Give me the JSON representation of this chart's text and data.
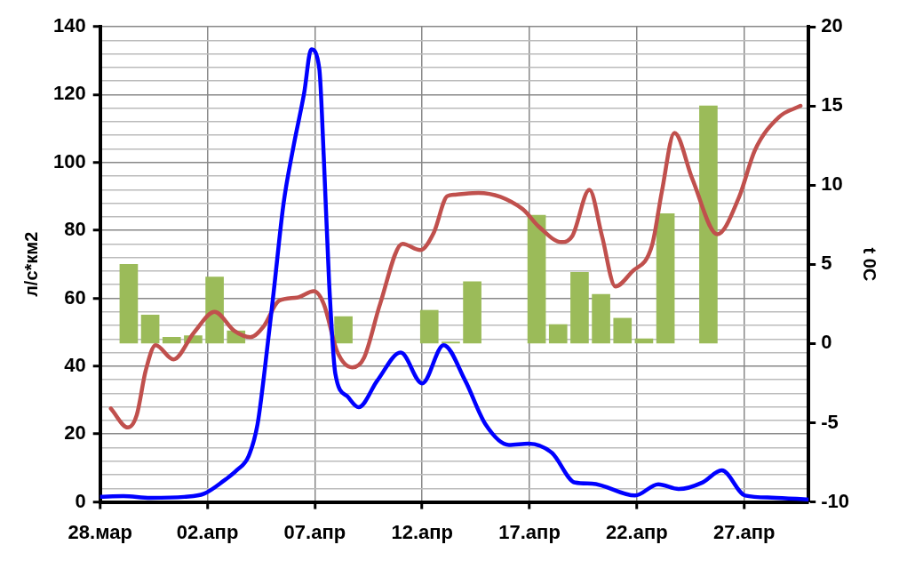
{
  "chart_data": {
    "type": "line",
    "ylabel": "л/с*км2",
    "y2label": "t 0C",
    "grid": true,
    "legend": false,
    "marker": "none",
    "line_style": "solid",
    "xlim": [
      "--03-28",
      "--04-30"
    ],
    "xticks": [
      {
        "value": "--03-28",
        "label": "28.мар"
      },
      {
        "value": "--04-02",
        "label": "02.апр"
      },
      {
        "value": "--04-07",
        "label": "07.апр"
      },
      {
        "value": "--04-12",
        "label": "12.апр"
      },
      {
        "value": "--04-17",
        "label": "17.апр"
      },
      {
        "value": "--04-22",
        "label": "22.апр"
      },
      {
        "value": "--04-27",
        "label": "27.апр"
      }
    ],
    "ylim": [
      0,
      140
    ],
    "yticks": [
      0,
      {
        "value": 4,
        "label": null
      },
      {
        "value": 8,
        "label": null
      },
      {
        "value": 12,
        "label": null
      },
      {
        "value": 16,
        "label": null
      },
      20,
      {
        "value": 24,
        "label": null
      },
      {
        "value": 28,
        "label": null
      },
      {
        "value": 32,
        "label": null
      },
      {
        "value": 36,
        "label": null
      },
      40,
      {
        "value": 44,
        "label": null
      },
      {
        "value": 48,
        "label": null
      },
      {
        "value": 52,
        "label": null
      },
      {
        "value": 56,
        "label": null
      },
      60,
      {
        "value": 64,
        "label": null
      },
      {
        "value": 68,
        "label": null
      },
      {
        "value": 72,
        "label": null
      },
      {
        "value": 76,
        "label": null
      },
      80,
      {
        "value": 84,
        "label": null
      },
      {
        "value": 88,
        "label": null
      },
      {
        "value": 92,
        "label": null
      },
      {
        "value": 96,
        "label": null
      },
      100,
      {
        "value": 104,
        "label": null
      },
      {
        "value": 108,
        "label": null
      },
      {
        "value": 112,
        "label": null
      },
      {
        "value": 116,
        "label": null
      },
      120,
      {
        "value": 124,
        "label": null
      },
      {
        "value": 128,
        "label": null
      },
      {
        "value": 132,
        "label": null
      },
      {
        "value": 136,
        "label": null
      },
      140
    ],
    "y2lim": [
      -10,
      20
    ],
    "y2ticks": [
      -10,
      -5,
      0,
      5,
      10,
      15,
      20
    ],
    "series": [
      {
        "type": "bar",
        "axis": "y2",
        "color": "#9bbb59",
        "x": [
          "--03-29T08:00",
          "--03-30T08:00",
          "--03-31T08:00",
          "--04-01T08:00",
          "--04-02T08:00",
          "--04-03T08:00",
          "--04-08T08:00",
          "--04-12T08:00",
          "--04-13T08:00",
          "--04-14T08:00",
          "--04-17T08:00",
          "--04-18T08:00",
          "--04-19T08:00",
          "--04-20T08:00",
          "--04-21T08:00",
          "--04-22T08:00",
          "--04-23T08:00",
          "--04-25T08:00"
        ],
        "values": [
          5.0,
          1.8,
          0.4,
          0.5,
          4.2,
          0.8,
          1.7,
          2.1,
          0.1,
          3.9,
          8.1,
          1.2,
          4.5,
          3.1,
          1.6,
          0.3,
          8.2,
          15.0
        ]
      },
      {
        "color": "#0000ff",
        "x": [
          "--03-28T00:00",
          "--03-29T02:00",
          "--03-30T08:00",
          "--03-31T22:00",
          "--04-01T20:00",
          "--04-02T18:00",
          "--04-03T09:00",
          "--04-03T22:00",
          "--04-04T08:00",
          "--04-04T15:00",
          "--04-05T02:00",
          "--04-05T13:00",
          "--04-06T00:00",
          "--04-06T12:00",
          "--04-06T20:00",
          "--04-07T05:00",
          "--04-07T10:00",
          "--04-07T16:00",
          "--04-07T23:00",
          "--04-08T12:00",
          "--04-09T01:00",
          "--04-09T22:00",
          "--04-11T00:00",
          "--04-12T00:00",
          "--04-13T00:00",
          "--04-14T00:00",
          "--04-14T23:00",
          "--04-16T01:00",
          "--04-16T23:00",
          "--04-18T01:00",
          "--04-19T03:00",
          "--04-19T22:00",
          "--04-21T22:00",
          "--04-23T00:00",
          "--04-23T23:00",
          "--04-25T01:00",
          "--04-25T23:00",
          "--04-27T01:00",
          "--04-28T07:00",
          "--04-30T00:00"
        ],
        "values": [
          1.5,
          1.7,
          1.2,
          1.5,
          2.4,
          6.2,
          9.4,
          13.5,
          22.9,
          36.7,
          61.8,
          87.8,
          104.5,
          120.3,
          133.3,
          127.7,
          101.8,
          64.6,
          37.7,
          31.2,
          27.9,
          35.8,
          44.0,
          34.9,
          46.2,
          35.8,
          22.8,
          16.8,
          17.2,
          14.5,
          5.7,
          5.4,
          1.9,
          5.2,
          3.8,
          5.7,
          9.3,
          1.9,
          1.3,
          0.7
        ]
      },
      {
        "axis": "y2",
        "color": "#c0504d",
        "x": [
          "--03-28T12:00",
          "--03-29T07:00",
          "--03-29T17:00",
          "--03-30T03:00",
          "--03-30T14:00",
          "--03-31T10:00",
          "--04-01T09:00",
          "--04-02T08:00",
          "--04-03T06:00",
          "--04-04T00:00",
          "--04-04T15:00",
          "--04-05T08:00",
          "--04-06T04:00",
          "--04-06T23:00",
          "--04-07T10:00",
          "--04-08T01:00",
          "--04-08T18:00",
          "--04-09T07:00",
          "--04-10T01:00",
          "--04-11T02:00",
          "--04-11T22:00",
          "--04-12T13:00",
          "--04-13T04:00",
          "--04-13T13:00",
          "--04-14T15:00",
          "--04-16T16:00",
          "--04-17T10:00",
          "--04-18T12:00",
          "--04-19T00:00",
          "--04-19T19:00",
          "--04-20T09:00",
          "--04-21T00:00",
          "--04-21T18:00",
          "--04-22T17:00",
          "--04-23T04:00",
          "--04-23T18:00",
          "--04-24T14:00",
          "--04-25T18:00",
          "--04-26T18:00",
          "--04-27T12:00",
          "--04-28T15:00",
          "--04-29T15:00"
        ],
        "values": [
          -4.1,
          -5.3,
          -4.5,
          -1.7,
          -0.1,
          -1.0,
          0.7,
          2.0,
          0.8,
          0.4,
          1.1,
          2.7,
          2.9,
          3.3,
          2.5,
          -0.5,
          -1.5,
          -0.9,
          2.5,
          6.3,
          5.9,
          7.0,
          9.3,
          9.4,
          9.5,
          8.5,
          7.4,
          6.4,
          6.8,
          9.7,
          6.8,
          3.6,
          4.5,
          6.2,
          9.6,
          13.3,
          10.4,
          6.9,
          9.2,
          12.2,
          14.3,
          15.0
        ]
      }
    ]
  }
}
